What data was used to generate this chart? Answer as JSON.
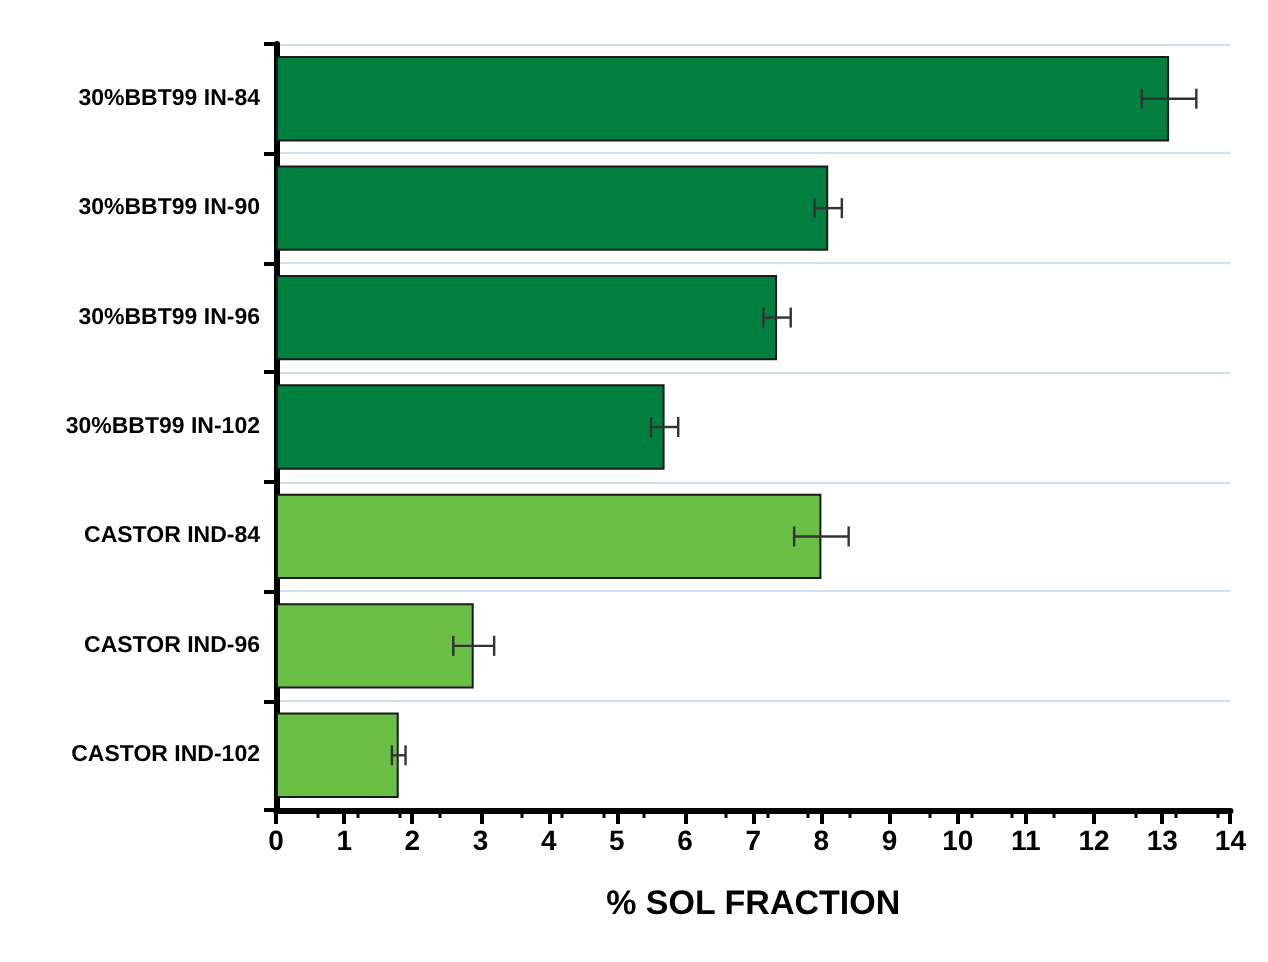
{
  "chart_data": {
    "type": "bar",
    "orientation": "horizontal",
    "xlabel": "% SOL FRACTION",
    "categories": [
      "30%BBT99 IN-84",
      "30%BBT99 IN-90",
      "30%BBT99 IN-96",
      "30%BBT99 IN-102",
      "CASTOR IND-84",
      "CASTOR IND-96",
      "CASTOR IND-102"
    ],
    "values": [
      13.1,
      8.1,
      7.35,
      5.7,
      8.0,
      2.9,
      1.8
    ],
    "errors": [
      0.4,
      0.2,
      0.2,
      0.2,
      0.4,
      0.3,
      0.1
    ],
    "colors": [
      "#00803f",
      "#00803f",
      "#00803f",
      "#00803f",
      "#6abf45",
      "#6abf45",
      "#6abf45"
    ],
    "xlim": [
      0,
      14
    ],
    "xticks": [
      0,
      1,
      2,
      3,
      4,
      5,
      6,
      7,
      8,
      9,
      10,
      11,
      12,
      13,
      14
    ],
    "grid": "y"
  }
}
